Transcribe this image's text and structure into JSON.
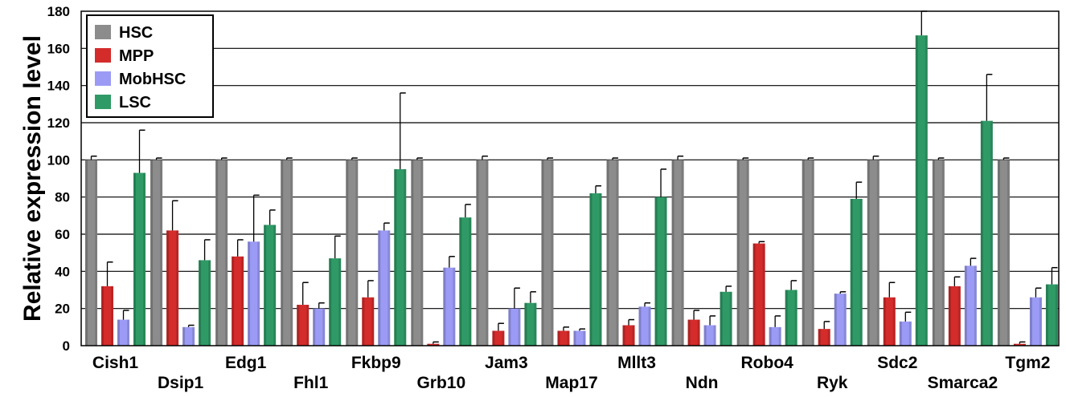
{
  "chart_data": {
    "type": "bar",
    "title": "",
    "xlabel": "",
    "ylabel": "Relative expression level",
    "ylim": [
      0,
      180
    ],
    "yticks": [
      0,
      20,
      40,
      60,
      80,
      100,
      120,
      140,
      160,
      180
    ],
    "grid": true,
    "legend_position": "top-left",
    "error_bars": true,
    "categories": [
      "Cish1",
      "Dsip1",
      "Edg1",
      "Fhl1",
      "Fkbp9",
      "Grb10",
      "Jam3",
      "Map17",
      "Mllt3",
      "Ndn",
      "Robo4",
      "Ryk",
      "Sdc2",
      "Smarca2",
      "Tgm2"
    ],
    "series": [
      {
        "name": "HSC",
        "color": "#8c8c8c",
        "values": [
          100,
          100,
          100,
          100,
          100,
          100,
          100,
          100,
          100,
          100,
          100,
          100,
          100,
          100,
          100
        ],
        "errors": [
          2,
          1,
          1,
          1,
          1,
          1,
          2,
          1,
          1,
          2,
          1,
          1,
          2,
          1,
          1
        ]
      },
      {
        "name": "MPP",
        "color": "#d42b2b",
        "values": [
          32,
          62,
          48,
          22,
          26,
          1,
          8,
          8,
          11,
          14,
          55,
          9,
          26,
          32,
          1
        ],
        "errors": [
          13,
          16,
          9,
          12,
          9,
          1,
          4,
          2,
          3,
          5,
          1,
          4,
          8,
          5,
          1
        ]
      },
      {
        "name": "MobHSC",
        "color": "#9b9bf5",
        "values": [
          14,
          10,
          56,
          20,
          62,
          42,
          20,
          8,
          21,
          11,
          10,
          28,
          13,
          43,
          26
        ],
        "errors": [
          5,
          1,
          25,
          3,
          4,
          6,
          11,
          1,
          2,
          5,
          6,
          1,
          5,
          4,
          5
        ]
      },
      {
        "name": "LSC",
        "color": "#2f9a66",
        "values": [
          93,
          46,
          65,
          47,
          95,
          69,
          23,
          82,
          80,
          29,
          30,
          79,
          167,
          121,
          33
        ],
        "errors": [
          23,
          11,
          8,
          12,
          41,
          7,
          6,
          4,
          15,
          3,
          5,
          9,
          13,
          25,
          9
        ]
      }
    ]
  }
}
